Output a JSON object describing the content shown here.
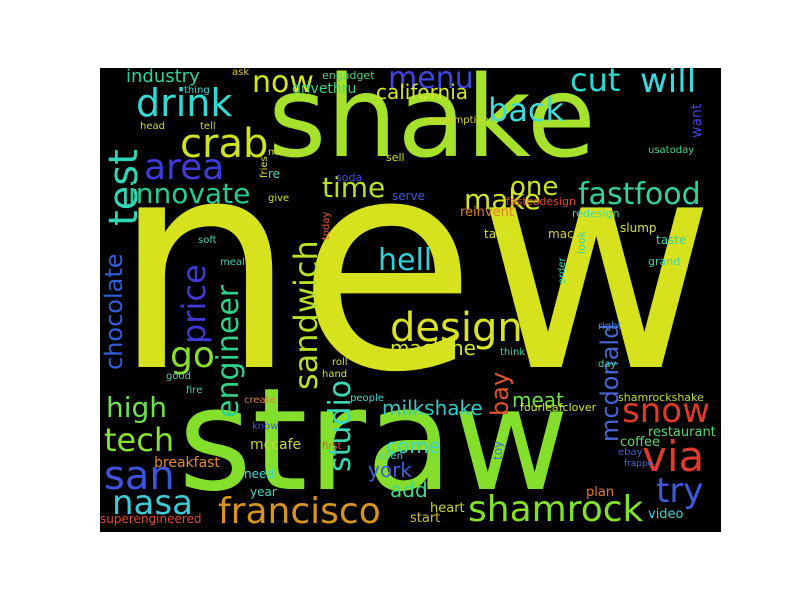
{
  "words": [
    {
      "text": "new",
      "color": "#d7e21e"
    },
    {
      "text": "straw",
      "color": "#84df2c"
    },
    {
      "text": "shake",
      "color": "#a6e22b"
    },
    {
      "text": "drink",
      "color": "#33d9d3"
    },
    {
      "text": "test",
      "color": "#32d4b8"
    },
    {
      "text": "crab",
      "color": "#d0e222"
    },
    {
      "text": "area",
      "color": "#3f3ad9"
    },
    {
      "text": "innovate",
      "color": "#26cc8f"
    },
    {
      "text": "industry",
      "color": "#2fd29d"
    },
    {
      "text": "now",
      "color": "#d3e320"
    },
    {
      "text": "menu",
      "color": "#3f45dc"
    },
    {
      "text": "back",
      "color": "#3fd9d6"
    },
    {
      "text": "cut",
      "color": "#2bd7cf"
    },
    {
      "text": "will",
      "color": "#3ddadc"
    },
    {
      "text": "california",
      "color": "#d6e42a"
    },
    {
      "text": "drivethru",
      "color": "#3fd47f"
    },
    {
      "text": "engadget",
      "color": "#53d37a"
    },
    {
      "text": "time",
      "color": "#b4e02e"
    },
    {
      "text": "one",
      "color": "#c8e226"
    },
    {
      "text": "make",
      "color": "#d5e128"
    },
    {
      "text": "fastfood",
      "color": "#33d1a2"
    },
    {
      "text": "chocolate",
      "color": "#2f5fdb"
    },
    {
      "text": "price",
      "color": "#3f3ad3"
    },
    {
      "text": "go",
      "color": "#87e02c"
    },
    {
      "text": "sandwich",
      "color": "#b7e127"
    },
    {
      "text": "hell",
      "color": "#2fd1d6"
    },
    {
      "text": "design",
      "color": "#d9e324"
    },
    {
      "text": "engineer",
      "color": "#2ed18a"
    },
    {
      "text": "high",
      "color": "#6ce24d"
    },
    {
      "text": "tech",
      "color": "#87e333"
    },
    {
      "text": "san",
      "color": "#3f54dd"
    },
    {
      "text": "nasa",
      "color": "#3ccad7"
    },
    {
      "text": "francisco",
      "color": "#d6941f"
    },
    {
      "text": "studio",
      "color": "#3ad7b8"
    },
    {
      "text": "york",
      "color": "#3f62d8"
    },
    {
      "text": "milkshake",
      "color": "#37c9c9"
    },
    {
      "text": "bay",
      "color": "#e0542b"
    },
    {
      "text": "mcdonald",
      "color": "#4666d6"
    },
    {
      "text": "snow",
      "color": "#e03a2a"
    },
    {
      "text": "via",
      "color": "#e03a2c"
    },
    {
      "text": "try",
      "color": "#3f5adb"
    },
    {
      "text": "shamrock",
      "color": "#84e12a"
    },
    {
      "text": "machine",
      "color": "#d0e327"
    },
    {
      "text": "meat",
      "color": "#6fe042"
    },
    {
      "text": "add",
      "color": "#41d78c"
    },
    {
      "text": "come",
      "color": "#3fd6c0"
    },
    {
      "text": "breakfast",
      "color": "#e28a2c"
    },
    {
      "text": "mccafe",
      "color": "#c8d72f"
    },
    {
      "text": "superengineered",
      "color": "#e0482c"
    },
    {
      "text": "year",
      "color": "#3ed7be"
    },
    {
      "text": "need",
      "color": "#3ed8cc"
    },
    {
      "text": "heart",
      "color": "#d2d32b"
    },
    {
      "text": "start",
      "color": "#d2c12b"
    },
    {
      "text": "video",
      "color": "#3fd2d3"
    },
    {
      "text": "plan",
      "color": "#e07b2d"
    },
    {
      "text": "coffee",
      "color": "#5ad76e"
    },
    {
      "text": "restaurant",
      "color": "#54d86f"
    },
    {
      "text": "shamrockshake",
      "color": "#b9e030"
    },
    {
      "text": "fourleafclover",
      "color": "#d4e32c"
    },
    {
      "text": "toy",
      "color": "#3f6bdb"
    },
    {
      "text": "reinvent",
      "color": "#e07b2d"
    },
    {
      "text": "fastcodesign",
      "color": "#e0452c"
    },
    {
      "text": "serve",
      "color": "#3f5ad9"
    },
    {
      "text": "take",
      "color": "#d6e22f"
    },
    {
      "text": "mac",
      "color": "#d6cf2d"
    },
    {
      "text": "slump",
      "color": "#d6e233"
    },
    {
      "text": "taste",
      "color": "#3fd19b"
    },
    {
      "text": "grand",
      "color": "#3fd0b0"
    },
    {
      "text": "redesign",
      "color": "#3fd8a4"
    },
    {
      "text": "look",
      "color": "#3ad2a1"
    },
    {
      "text": "order",
      "color": "#3fd6b6"
    },
    {
      "text": "right",
      "color": "#3f8bd9"
    },
    {
      "text": "day",
      "color": "#3ed49d"
    },
    {
      "text": "think",
      "color": "#3fd6ac"
    },
    {
      "text": "usatoday",
      "color": "#3fd58c"
    },
    {
      "text": "want",
      "color": "#3f43d6"
    },
    {
      "text": "soda",
      "color": "#3f4cd6"
    },
    {
      "text": "sell",
      "color": "#d0e22c"
    },
    {
      "text": "consumption",
      "color": "#d5d52b"
    },
    {
      "text": "meal",
      "color": "#3fd2b8"
    },
    {
      "text": "soft",
      "color": "#3fd6b2"
    },
    {
      "text": "roll",
      "color": "#d1e02c"
    },
    {
      "text": "hand",
      "color": "#d4df2f"
    },
    {
      "text": "good",
      "color": "#3fd2ba"
    },
    {
      "text": "fire",
      "color": "#3fd49c"
    },
    {
      "text": "know",
      "color": "#3f58d6"
    },
    {
      "text": "head",
      "color": "#cfd82e"
    },
    {
      "text": "tell",
      "color": "#cfd22d"
    },
    {
      "text": "thing",
      "color": "#3fd8d6"
    },
    {
      "text": "ask",
      "color": "#d5c52e"
    },
    {
      "text": "give",
      "color": "#d0e031"
    },
    {
      "text": "re",
      "color": "#3fd7c8"
    },
    {
      "text": "fries",
      "color": "#cfe12d"
    },
    {
      "text": "today",
      "color": "#e0602c"
    },
    {
      "text": "money",
      "color": "#c4d832"
    },
    {
      "text": "people",
      "color": "#3fd8d4"
    },
    {
      "text": "create",
      "color": "#d8842f"
    },
    {
      "text": "first",
      "color": "#e0542c"
    },
    {
      "text": "open",
      "color": "#3fd6d6"
    },
    {
      "text": "ebay",
      "color": "#3f62d6"
    },
    {
      "text": "frappe",
      "color": "#3f6ad6"
    }
  ]
}
